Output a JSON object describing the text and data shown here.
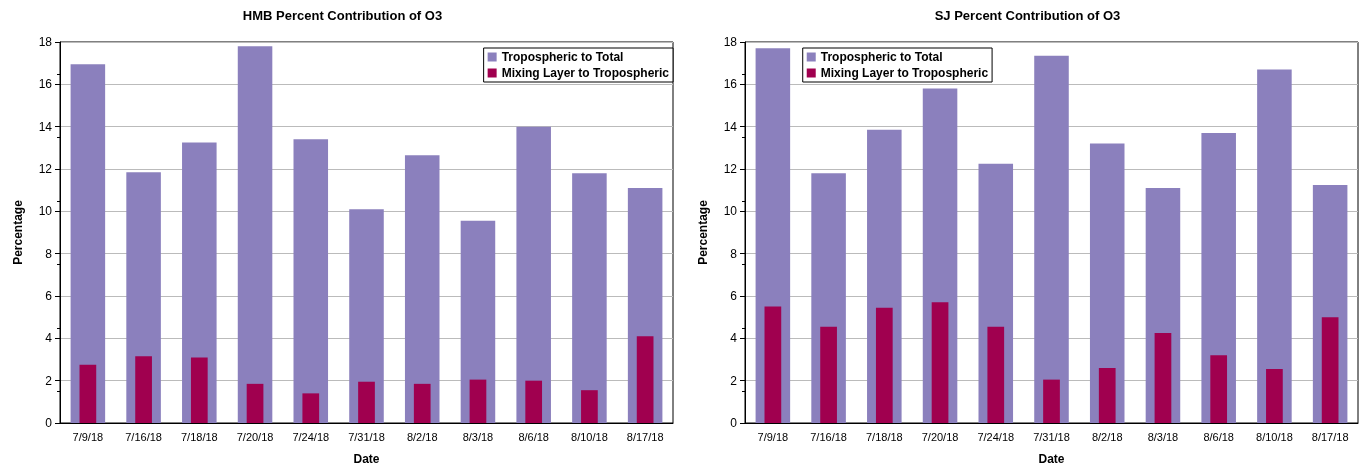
{
  "chart_data": [
    {
      "type": "bar",
      "title": "HMB Percent Contribution of O3",
      "xlabel": "Date",
      "ylabel": "Percentage",
      "categories": [
        "7/9/18",
        "7/16/18",
        "7/18/18",
        "7/20/18",
        "7/24/18",
        "7/31/18",
        "8/2/18",
        "8/3/18",
        "8/6/18",
        "8/10/18",
        "8/17/18"
      ],
      "series": [
        {
          "name": "Tropospheric to Total",
          "color": "#8b80bd",
          "values": [
            16.95,
            11.85,
            13.25,
            17.8,
            13.4,
            10.1,
            12.65,
            9.55,
            14.0,
            11.8,
            11.1
          ]
        },
        {
          "name": "Mixing Layer to Tropospheric",
          "color": "#a0004f",
          "values": [
            2.75,
            3.15,
            3.1,
            1.85,
            1.4,
            1.95,
            1.85,
            2.05,
            2.0,
            1.55,
            4.1
          ]
        }
      ],
      "ylim": [
        0,
        18
      ],
      "yticks": [
        0,
        2,
        4,
        6,
        8,
        10,
        12,
        14,
        16,
        18
      ],
      "grid": "y",
      "legend": "top right"
    },
    {
      "type": "bar",
      "title": "SJ Percent Contribution of O3",
      "xlabel": "Date",
      "ylabel": "Percentage",
      "categories": [
        "7/9/18",
        "7/16/18",
        "7/18/18",
        "7/20/18",
        "7/24/18",
        "7/31/18",
        "8/2/18",
        "8/3/18",
        "8/6/18",
        "8/10/18",
        "8/17/18"
      ],
      "series": [
        {
          "name": "Tropospheric to Total",
          "color": "#8b80bd",
          "values": [
            17.7,
            11.8,
            13.85,
            15.8,
            12.25,
            17.35,
            13.2,
            11.1,
            13.7,
            16.7,
            11.25
          ]
        },
        {
          "name": "Mixing Layer to Tropospheric",
          "color": "#a0004f",
          "values": [
            5.5,
            4.55,
            5.45,
            5.7,
            4.55,
            2.05,
            2.6,
            4.25,
            3.2,
            2.55,
            5.0
          ]
        }
      ],
      "ylim": [
        0,
        18
      ],
      "yticks": [
        0,
        2,
        4,
        6,
        8,
        10,
        12,
        14,
        16,
        18
      ],
      "grid": "y",
      "legend": "top left"
    }
  ]
}
